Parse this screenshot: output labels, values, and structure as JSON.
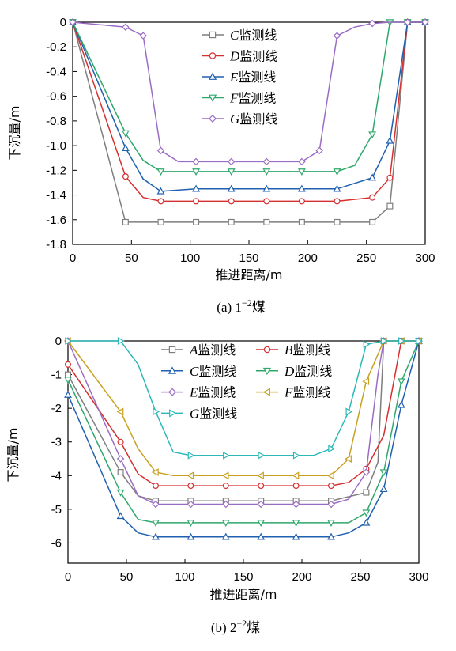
{
  "chart_data": [
    {
      "type": "line",
      "caption": "(a) 1",
      "caption_sup": "−2",
      "caption_suffix": "煤",
      "xlabel": "推进距离/m",
      "ylabel": "下沉量/m",
      "xlim": [
        0,
        300
      ],
      "ylim": [
        -1.8,
        0
      ],
      "xticks": [
        0,
        50,
        100,
        150,
        200,
        250,
        300
      ],
      "xtick_labels": [
        "0",
        "50",
        "100",
        "150",
        "200",
        "250",
        "300"
      ],
      "yticks": [
        0,
        -0.2,
        -0.4,
        -0.6,
        -0.8,
        -1.0,
        -1.2,
        -1.4,
        -1.6,
        -1.8
      ],
      "ytick_labels": [
        "0",
        "-0.2",
        "-0.4",
        "-0.6",
        "-0.8",
        "-1.0",
        "-1.2",
        "-1.4",
        "-1.6",
        "-1.8"
      ],
      "legend_placement": "top-center",
      "legend_columns": 1,
      "grid": false,
      "series": [
        {
          "letter": "C",
          "name": "监测线",
          "color": "#7f7f7f",
          "marker": "square",
          "x": [
            0,
            45,
            75,
            105,
            135,
            165,
            195,
            225,
            255,
            270,
            285,
            300
          ],
          "y": [
            0,
            -1.62,
            -1.62,
            -1.62,
            -1.62,
            -1.62,
            -1.62,
            -1.62,
            -1.62,
            -1.49,
            0,
            0
          ],
          "mx": [
            0,
            45,
            75,
            105,
            135,
            165,
            195,
            225,
            255,
            270,
            285,
            300
          ]
        },
        {
          "letter": "D",
          "name": "监测线",
          "color": "#d62f2f",
          "marker": "circle",
          "x": [
            0,
            45,
            60,
            75,
            105,
            135,
            165,
            195,
            225,
            255,
            270,
            285,
            300
          ],
          "y": [
            0,
            -1.25,
            -1.42,
            -1.45,
            -1.45,
            -1.45,
            -1.45,
            -1.45,
            -1.45,
            -1.42,
            -1.26,
            0,
            0
          ],
          "mx": [
            0,
            45,
            75,
            105,
            135,
            165,
            195,
            225,
            255,
            270,
            285,
            300
          ]
        },
        {
          "letter": "E",
          "name": "监测线",
          "color": "#2060b0",
          "marker": "triangle-up",
          "x": [
            0,
            45,
            60,
            75,
            105,
            135,
            165,
            195,
            225,
            255,
            270,
            285,
            300
          ],
          "y": [
            0,
            -1.02,
            -1.27,
            -1.37,
            -1.35,
            -1.35,
            -1.35,
            -1.35,
            -1.35,
            -1.26,
            -0.96,
            0,
            0
          ],
          "mx": [
            0,
            45,
            75,
            105,
            135,
            165,
            195,
            225,
            255,
            270,
            285,
            300
          ]
        },
        {
          "letter": "F",
          "name": "监测线",
          "color": "#2ea86a",
          "marker": "triangle-down",
          "x": [
            0,
            45,
            60,
            75,
            105,
            135,
            165,
            195,
            225,
            240,
            255,
            270,
            285,
            300
          ],
          "y": [
            0,
            -0.9,
            -1.12,
            -1.21,
            -1.21,
            -1.21,
            -1.21,
            -1.21,
            -1.21,
            -1.16,
            -0.91,
            0,
            0,
            0
          ],
          "mx": [
            0,
            45,
            75,
            105,
            135,
            165,
            195,
            225,
            255,
            270,
            285,
            300
          ]
        },
        {
          "letter": "G",
          "name": "监测线",
          "color": "#9b6cc4",
          "marker": "diamond",
          "x": [
            0,
            45,
            60,
            75,
            90,
            105,
            135,
            165,
            195,
            210,
            225,
            240,
            255,
            270,
            285,
            300
          ],
          "y": [
            0,
            -0.04,
            -0.11,
            -1.04,
            -1.13,
            -1.13,
            -1.13,
            -1.13,
            -1.13,
            -1.04,
            -0.11,
            -0.04,
            -0.01,
            0,
            0,
            0
          ],
          "mx": [
            0,
            45,
            60,
            75,
            105,
            135,
            165,
            195,
            210,
            225,
            255,
            285,
            300
          ]
        }
      ]
    },
    {
      "type": "line",
      "caption": "(b) 2",
      "caption_sup": "−2",
      "caption_suffix": "煤",
      "xlabel": "推进距离/m",
      "ylabel": "下沉量/m",
      "xlim": [
        0,
        300
      ],
      "ylim": [
        -6.6,
        0
      ],
      "xticks": [
        0,
        50,
        100,
        150,
        200,
        250,
        300
      ],
      "xtick_labels": [
        "0",
        "50",
        "100",
        "150",
        "200",
        "250",
        "300"
      ],
      "yticks": [
        0,
        -1,
        -2,
        -3,
        -4,
        -5,
        -6
      ],
      "ytick_labels": [
        "0",
        "-1",
        "-2",
        "-3",
        "-4",
        "-5",
        "-6"
      ],
      "legend_placement": "top-center",
      "legend_columns": 2,
      "grid": false,
      "series": [
        {
          "letter": "A",
          "name": "监测线",
          "color": "#7f7f7f",
          "marker": "square",
          "x": [
            0,
            45,
            60,
            75,
            105,
            135,
            165,
            195,
            225,
            255,
            265,
            270,
            285,
            300
          ],
          "y": [
            -1.0,
            -3.9,
            -4.6,
            -4.75,
            -4.75,
            -4.75,
            -4.75,
            -4.75,
            -4.75,
            -4.5,
            -3.6,
            0,
            0,
            0
          ],
          "mx": [
            0,
            45,
            75,
            105,
            135,
            165,
            195,
            225,
            255,
            270,
            285,
            300
          ]
        },
        {
          "letter": "B",
          "name": "监测线",
          "color": "#d62f2f",
          "marker": "circle",
          "x": [
            0,
            45,
            60,
            75,
            105,
            135,
            165,
            195,
            225,
            240,
            255,
            270,
            285,
            300
          ],
          "y": [
            -0.7,
            -3.0,
            -3.95,
            -4.3,
            -4.3,
            -4.3,
            -4.3,
            -4.3,
            -4.3,
            -4.2,
            -3.8,
            -2.8,
            0,
            0
          ],
          "mx": [
            0,
            45,
            75,
            105,
            135,
            165,
            195,
            225,
            255,
            285,
            300
          ]
        },
        {
          "letter": "C",
          "name": "监测线",
          "color": "#2060b0",
          "marker": "triangle-up",
          "x": [
            0,
            45,
            60,
            75,
            105,
            135,
            165,
            195,
            225,
            240,
            255,
            270,
            285,
            300
          ],
          "y": [
            -1.6,
            -5.2,
            -5.7,
            -5.82,
            -5.82,
            -5.82,
            -5.82,
            -5.82,
            -5.82,
            -5.7,
            -5.4,
            -4.4,
            -1.9,
            0
          ],
          "mx": [
            0,
            45,
            75,
            105,
            135,
            165,
            195,
            225,
            255,
            270,
            285,
            300
          ]
        },
        {
          "letter": "D",
          "name": "监测线",
          "color": "#2ea86a",
          "marker": "triangle-down",
          "x": [
            0,
            45,
            60,
            75,
            105,
            135,
            165,
            195,
            225,
            240,
            255,
            270,
            285,
            300
          ],
          "y": [
            -1.15,
            -4.5,
            -5.3,
            -5.4,
            -5.4,
            -5.4,
            -5.4,
            -5.4,
            -5.4,
            -5.4,
            -5.1,
            -3.9,
            -1.2,
            0
          ],
          "mx": [
            0,
            45,
            75,
            105,
            135,
            165,
            195,
            225,
            255,
            270,
            285,
            300
          ]
        },
        {
          "letter": "E",
          "name": "监测线",
          "color": "#9b6cc4",
          "marker": "diamond",
          "x": [
            0,
            45,
            60,
            75,
            105,
            135,
            165,
            195,
            225,
            240,
            255,
            265,
            270,
            285,
            300
          ],
          "y": [
            0,
            -3.5,
            -4.6,
            -4.85,
            -4.85,
            -4.85,
            -4.85,
            -4.85,
            -4.85,
            -4.7,
            -3.9,
            -1.0,
            0,
            0,
            0
          ],
          "mx": [
            0,
            45,
            75,
            105,
            135,
            165,
            195,
            225,
            255,
            270,
            285,
            300
          ]
        },
        {
          "letter": "F",
          "name": "监测线",
          "color": "#c9a020",
          "marker": "triangle-left",
          "x": [
            0,
            45,
            60,
            75,
            90,
            105,
            135,
            165,
            195,
            225,
            240,
            255,
            270,
            285,
            300
          ],
          "y": [
            0,
            -2.1,
            -3.2,
            -3.9,
            -4.0,
            -4.0,
            -4.0,
            -4.0,
            -4.0,
            -4.0,
            -3.5,
            -1.2,
            0,
            0,
            0
          ],
          "mx": [
            0,
            45,
            75,
            105,
            135,
            165,
            195,
            225,
            240,
            255,
            270,
            285,
            300
          ]
        },
        {
          "letter": "G",
          "name": "监测线",
          "color": "#2ab8b8",
          "marker": "triangle-right",
          "x": [
            0,
            45,
            60,
            75,
            90,
            105,
            135,
            165,
            195,
            210,
            225,
            240,
            255,
            270,
            285,
            300
          ],
          "y": [
            0,
            0,
            -0.7,
            -2.1,
            -3.3,
            -3.4,
            -3.4,
            -3.4,
            -3.4,
            -3.4,
            -3.2,
            -2.1,
            -0.1,
            0,
            0,
            0
          ],
          "mx": [
            0,
            45,
            75,
            105,
            135,
            165,
            195,
            225,
            240,
            255,
            270,
            285,
            300
          ]
        }
      ]
    }
  ]
}
